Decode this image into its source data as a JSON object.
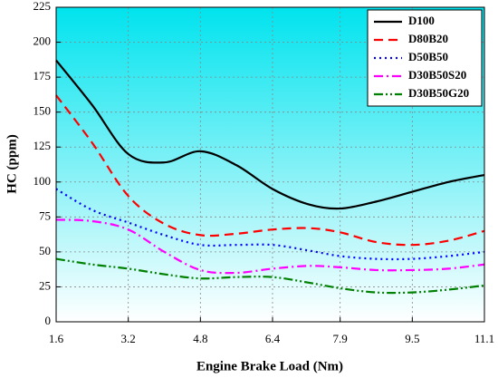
{
  "chart_data": {
    "type": "line",
    "x_label": "Engine Brake Load (Nm)",
    "y_label": "HC (ppm)",
    "x": [
      1.6,
      2.4,
      3.2,
      4.0,
      4.8,
      5.6,
      6.4,
      7.2,
      7.9,
      8.7,
      9.5,
      10.3,
      11.1
    ],
    "series": [
      {
        "name": "D100",
        "color": "#000000",
        "dash": "solid",
        "values": [
          187,
          155,
          120,
          114,
          122,
          112,
          95,
          84,
          81,
          86,
          93,
          100,
          105
        ]
      },
      {
        "name": "D80B20",
        "color": "#ff0000",
        "dash": "dashed",
        "values": [
          162,
          128,
          90,
          70,
          62,
          63,
          66,
          67,
          64,
          57,
          55,
          58,
          65
        ]
      },
      {
        "name": "D50B50",
        "color": "#0000ff",
        "dash": "dotted",
        "values": [
          95,
          80,
          71,
          62,
          55,
          55,
          55,
          51,
          47,
          45,
          45,
          47,
          50
        ]
      },
      {
        "name": "D30B50S20",
        "color": "#ff00ff",
        "dash": "dashdot",
        "values": [
          73,
          72,
          66,
          50,
          37,
          35,
          38,
          40,
          39,
          37,
          37,
          38,
          41
        ]
      },
      {
        "name": "D30B50G20",
        "color": "#008000",
        "dash": "dashdotdot",
        "values": [
          45,
          41,
          38,
          34,
          31,
          32,
          32,
          28,
          24,
          21,
          21,
          23,
          26
        ]
      }
    ],
    "xlim": [
      1.6,
      11.1
    ],
    "xticks": [
      1.6,
      3.2,
      4.8,
      6.4,
      7.9,
      9.5,
      11.1
    ],
    "ylim": [
      0,
      225
    ],
    "yticks": [
      0,
      25,
      50,
      75,
      100,
      125,
      150,
      175,
      200,
      225
    ],
    "grid": true,
    "legend": "upper right"
  }
}
